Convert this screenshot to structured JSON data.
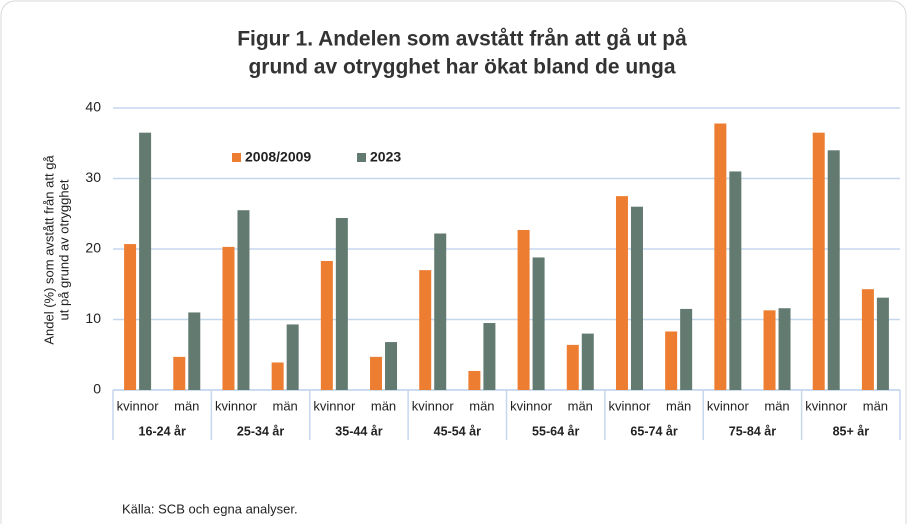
{
  "chart_data": {
    "type": "bar",
    "title": [
      "Figur 1. Andelen som avstått från att gå ut på",
      "grund av otrygghet har ökat bland de unga"
    ],
    "ylabel": [
      "Andel (%) som avstått från att gå",
      "ut på grund av otrygghet"
    ],
    "categories": [
      "kvinnor",
      "män",
      "kvinnor",
      "män",
      "kvinnor",
      "män",
      "kvinnor",
      "män",
      "kvinnor",
      "män",
      "kvinnor",
      "män",
      "kvinnor",
      "män",
      "kvinnor",
      "män"
    ],
    "groups": [
      "16-24 år",
      "25-34 år",
      "35-44 år",
      "45-54 år",
      "55-64 år",
      "65-74 år",
      "75-84 år",
      "85+ år"
    ],
    "series": [
      {
        "name": "2008/2009",
        "color": "#ed7d31",
        "values": [
          20.7,
          4.7,
          20.3,
          3.9,
          18.3,
          4.7,
          17.0,
          2.7,
          22.7,
          6.4,
          27.5,
          8.3,
          37.8,
          11.3,
          36.5,
          14.3
        ]
      },
      {
        "name": "2023",
        "color": "#637a70",
        "values": [
          36.5,
          11.0,
          25.5,
          9.3,
          24.4,
          6.8,
          22.2,
          9.5,
          18.8,
          8.0,
          26.0,
          11.5,
          31.0,
          11.6,
          34.0,
          13.1
        ]
      }
    ],
    "ylim": [
      0,
      40
    ],
    "yticks": [
      0,
      10,
      20,
      30,
      40
    ],
    "grid": true,
    "source": "Källa: SCB och egna analyser."
  }
}
